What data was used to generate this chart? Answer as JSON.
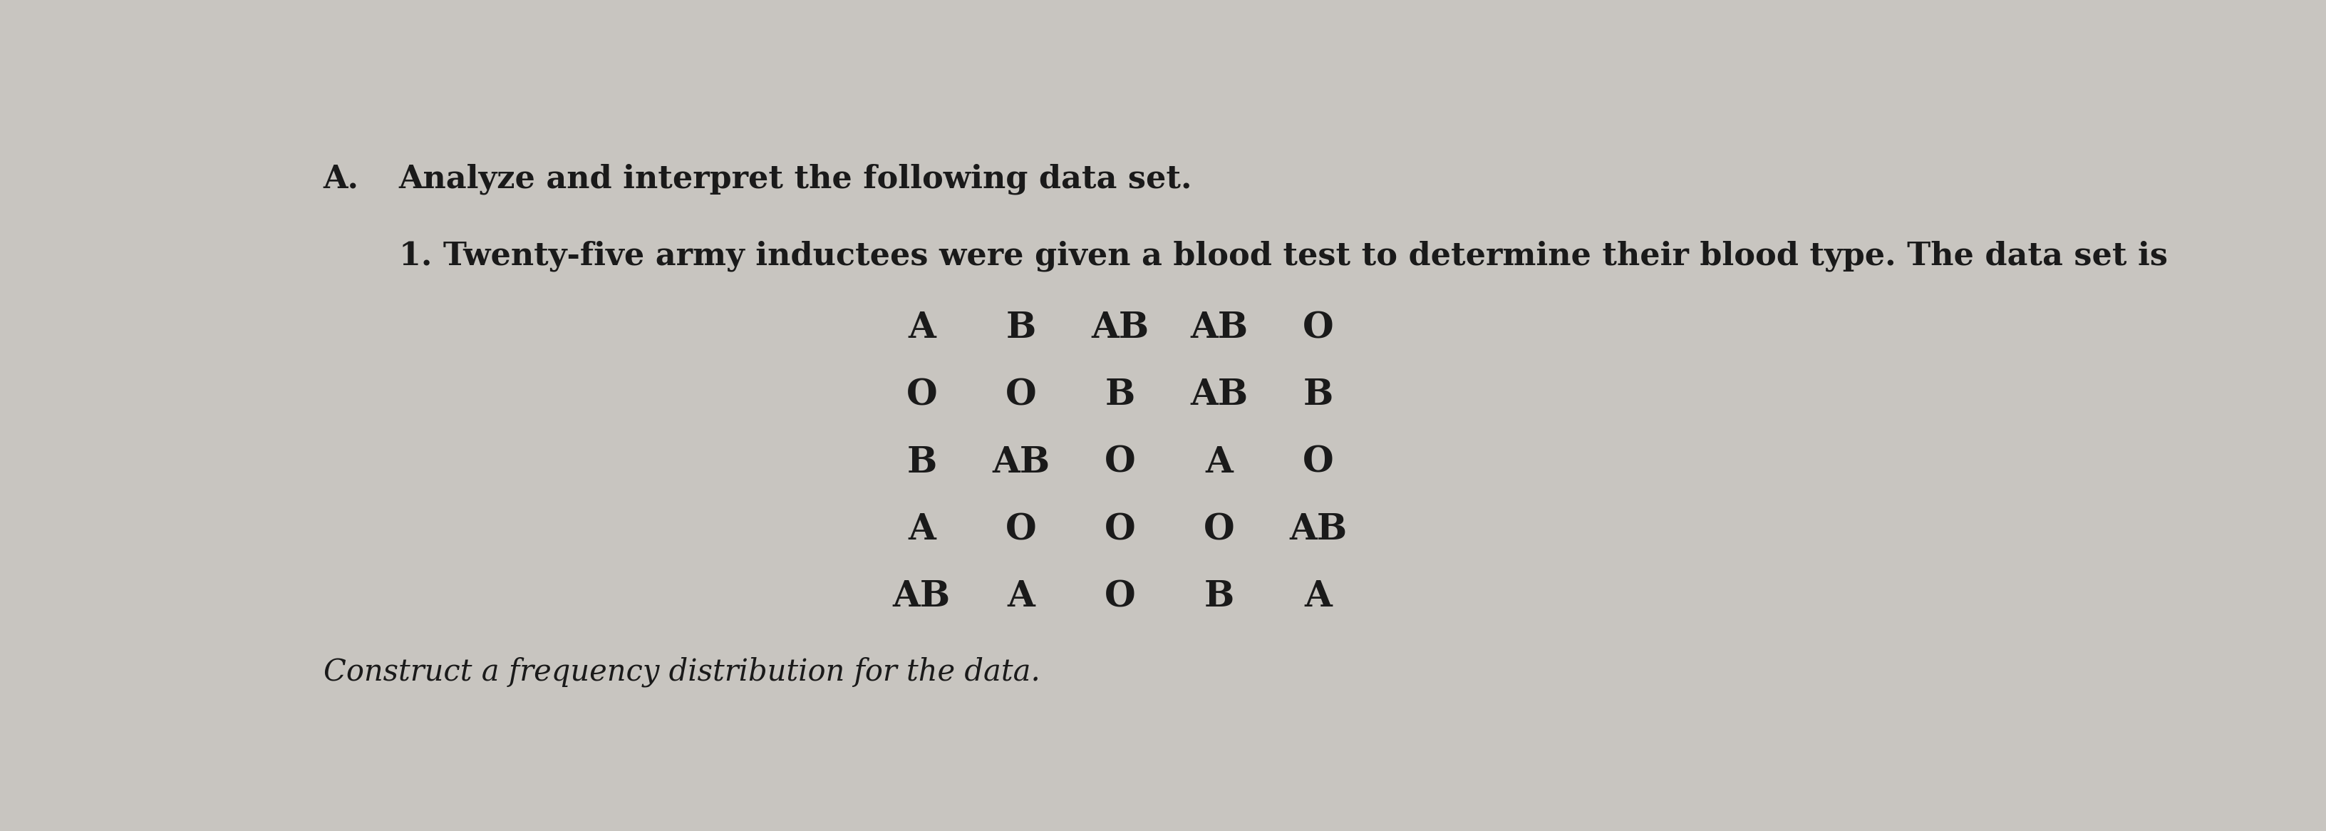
{
  "background_color": "#c8c5c0",
  "text_color": "#1a1a1a",
  "title_A": "A.",
  "line1": "Analyze and interpret the following data set.",
  "line2": "1. Twenty-five army inductees were given a blood test to determine their blood type. The data set is",
  "data_grid": [
    [
      "A",
      "B",
      "AB",
      "AB",
      "O"
    ],
    [
      "O",
      "O",
      "B",
      "AB",
      "B"
    ],
    [
      "B",
      "AB",
      "O",
      "A",
      "O"
    ],
    [
      "A",
      "O",
      "O",
      "O",
      "AB"
    ],
    [
      "AB",
      "A",
      "O",
      "B",
      "A"
    ]
  ],
  "instruction": "Construct a frequency distribution for the data.",
  "header_fontsize": 32,
  "data_fontsize": 36,
  "instruction_fontsize": 30
}
